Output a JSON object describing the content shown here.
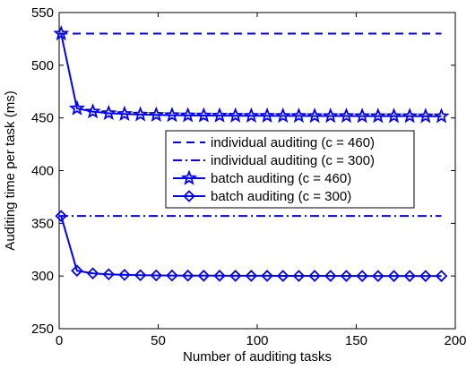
{
  "chart_data": {
    "type": "line",
    "title": "",
    "xlabel": "Number of auditing tasks",
    "ylabel": "Auditing time per task (ms)",
    "xlim": [
      0,
      200
    ],
    "ylim": [
      250,
      550
    ],
    "xticks": [
      0,
      50,
      100,
      150,
      200
    ],
    "yticks": [
      250,
      300,
      350,
      400,
      450,
      500,
      550
    ],
    "grid": false,
    "legend_position": "center-right",
    "series": [
      {
        "name": "individual auditing (c = 460)",
        "color": "#0000ff",
        "line": "dashed",
        "marker": "none",
        "x": [
          0,
          193
        ],
        "y": [
          530,
          530
        ]
      },
      {
        "name": "individual auditing (c = 300)",
        "color": "#0000ff",
        "line": "dashdot",
        "marker": "none",
        "x": [
          0,
          193
        ],
        "y": [
          357,
          357
        ]
      },
      {
        "name": "batch auditing (c = 460)",
        "color": "#0000ff",
        "line": "solid",
        "marker": "star",
        "x": [
          1,
          9,
          17,
          25,
          33,
          41,
          49,
          57,
          65,
          73,
          81,
          89,
          97,
          105,
          113,
          121,
          129,
          137,
          145,
          153,
          161,
          169,
          177,
          185,
          193
        ],
        "y": [
          530,
          459,
          456,
          454.5,
          453.7,
          453.2,
          452.9,
          452.6,
          452.4,
          452.3,
          452.2,
          452.1,
          452.0,
          452.0,
          451.9,
          451.9,
          451.8,
          451.8,
          451.8,
          451.7,
          451.7,
          451.7,
          451.7,
          451.6,
          451.6
        ]
      },
      {
        "name": "batch auditing (c = 300)",
        "color": "#0000ff",
        "line": "solid",
        "marker": "diamond",
        "x": [
          1,
          9,
          17,
          25,
          33,
          41,
          49,
          57,
          65,
          73,
          81,
          89,
          97,
          105,
          113,
          121,
          129,
          137,
          145,
          153,
          161,
          169,
          177,
          185,
          193
        ],
        "y": [
          357,
          305,
          302.5,
          301.6,
          301.1,
          300.8,
          300.6,
          300.5,
          300.4,
          300.3,
          300.3,
          300.2,
          300.2,
          300.2,
          300.1,
          300.1,
          300.1,
          300.1,
          300.1,
          300.0,
          300.0,
          300.0,
          300.0,
          300.0,
          300.0
        ]
      }
    ]
  }
}
